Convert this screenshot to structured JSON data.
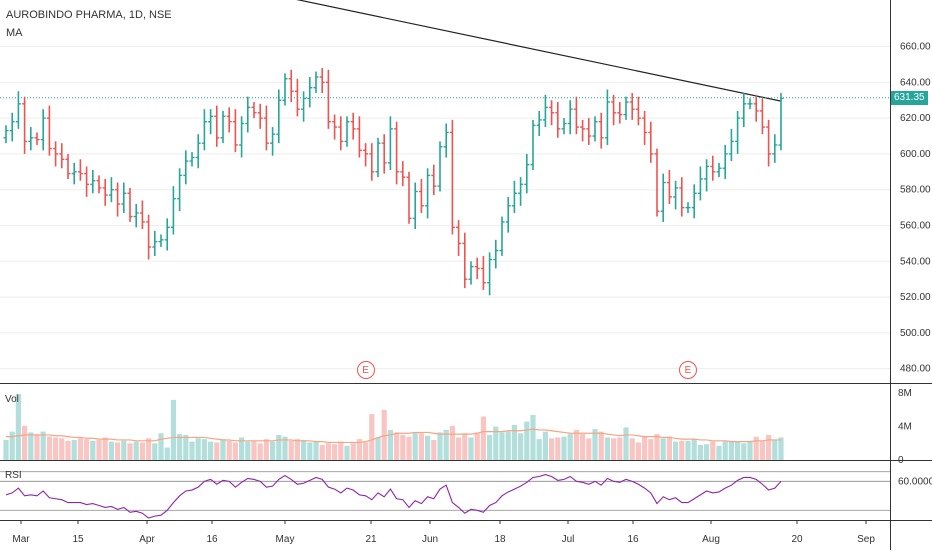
{
  "header": {
    "symbol_line": "AUROBINDO PHARMA, 1D, NSE",
    "indicator_label": "MA"
  },
  "colors": {
    "up": "#26a69a",
    "down": "#ef5350",
    "up_vol": "#b2dfdb",
    "down_vol": "#f8c5c3",
    "ma": "#222222",
    "rsi": "#8e24aa",
    "vol_ma": "#f4a582",
    "grid": "#eeeeee"
  },
  "earnings_badge": "E",
  "last_price_label": "631.35",
  "chart_data": [
    {
      "type": "ohlc",
      "pane": "price",
      "price_axis_ticks": [
        "660.00",
        "640.00",
        "620.00",
        "600.00",
        "580.00",
        "560.00",
        "540.00",
        "520.00",
        "500.00",
        "480.00"
      ],
      "ylim": [
        472,
        686
      ],
      "last_price": 631.35,
      "x_labels": [
        "Mar",
        "15",
        "Apr",
        "16",
        "May",
        "21",
        "Jun",
        "18",
        "Jul",
        "16",
        "Aug",
        "20",
        "Sep"
      ],
      "closes": [
        613,
        618,
        628,
        607,
        609,
        608,
        620,
        603,
        600,
        597,
        589,
        590,
        589,
        583,
        585,
        581,
        577,
        580,
        572,
        578,
        565,
        567,
        562,
        548,
        551,
        552,
        559,
        575,
        588,
        596,
        598,
        606,
        618,
        621,
        609,
        621,
        618,
        605,
        617,
        626,
        623,
        620,
        606,
        611,
        630,
        642,
        635,
        625,
        631,
        637,
        643,
        640,
        618,
        615,
        607,
        618,
        614,
        602,
        600,
        590,
        606,
        595,
        614,
        590,
        587,
        564,
        579,
        571,
        588,
        582,
        604,
        612,
        559,
        550,
        530,
        537,
        536,
        528,
        541,
        546,
        562,
        571,
        578,
        583,
        594,
        616,
        619,
        626,
        623,
        614,
        617,
        625,
        615,
        614,
        610,
        618,
        609,
        629,
        623,
        622,
        629,
        625,
        620,
        612,
        600,
        568,
        584,
        576,
        581,
        570,
        570,
        578,
        586,
        593,
        590,
        592,
        600,
        607,
        620,
        628,
        628,
        624,
        615,
        600,
        605,
        631
      ],
      "ma_line": {
        "start": 690.0,
        "end": 629.5
      },
      "earnings_indices": [
        58,
        110
      ]
    },
    {
      "type": "bar",
      "pane": "volume",
      "label": "Vol",
      "axis_ticks": [
        "8M",
        "4M",
        "0"
      ],
      "ylim": [
        0,
        8.5
      ],
      "values": [
        2.4,
        3.4,
        7.9,
        4.1,
        3.3,
        3.1,
        3.4,
        2.8,
        2.7,
        2.6,
        2.3,
        2.4,
        2.6,
        2.5,
        2.3,
        2.4,
        2.7,
        2.2,
        2.1,
        2.3,
        2.0,
        2.2,
        2.1,
        2.6,
        2.0,
        3.2,
        1.5,
        7.2,
        3.1,
        3.0,
        2.2,
        2.6,
        2.5,
        2.2,
        2.1,
        2.5,
        2.3,
        2.1,
        2.7,
        2.2,
        2.3,
        2.0,
        2.5,
        2.2,
        3.0,
        2.8,
        2.3,
        2.5,
        2.4,
        2.1,
        2.2,
        1.8,
        2.0,
        1.9,
        2.2,
        1.7,
        2.0,
        2.5,
        2.1,
        5.5,
        2.7,
        6.0,
        3.6,
        3.3,
        3.0,
        2.8,
        3.3,
        3.2,
        2.9,
        2.4,
        3.3,
        3.6,
        4.1,
        2.7,
        3.2,
        2.7,
        3.3,
        5.2,
        3.0,
        4.0,
        3.3,
        3.4,
        4.2,
        3.2,
        4.6,
        5.4,
        2.5,
        3.4,
        2.6,
        2.7,
        2.8,
        3.1,
        3.6,
        3.1,
        2.6,
        3.7,
        3.4,
        2.7,
        2.6,
        2.7,
        3.9,
        2.6,
        2.1,
        2.8,
        2.5,
        3.1,
        2.6,
        2.8,
        2.2,
        2.3,
        2.3,
        2.5,
        1.8,
        1.9,
        2.2,
        1.7,
        2.2,
        2.3,
        2.2,
        2.0,
        2.3,
        2.8,
        2.3,
        3.0,
        2.4,
        2.7
      ],
      "ma_values": [
        2.8,
        2.8,
        2.9,
        3.0,
        3.0,
        3.0,
        3.0,
        3.0,
        2.9,
        2.9,
        2.8,
        2.7,
        2.7,
        2.6,
        2.6,
        2.5,
        2.5,
        2.5,
        2.4,
        2.4,
        2.4,
        2.3,
        2.3,
        2.3,
        2.3,
        2.5,
        2.6,
        2.7,
        2.7,
        2.7,
        2.7,
        2.7,
        2.7,
        2.6,
        2.5,
        2.4,
        2.4,
        2.3,
        2.3,
        2.3,
        2.3,
        2.3,
        2.3,
        2.3,
        2.4,
        2.4,
        2.4,
        2.3,
        2.3,
        2.3,
        2.2,
        2.2,
        2.1,
        2.1,
        2.1,
        2.1,
        2.1,
        2.1,
        2.2,
        2.4,
        2.7,
        2.9,
        3.0,
        3.2,
        3.2,
        3.2,
        3.3,
        3.3,
        3.3,
        3.2,
        3.1,
        3.1,
        3.1,
        3.1,
        3.1,
        3.1,
        3.2,
        3.4,
        3.4,
        3.4,
        3.4,
        3.5,
        3.5,
        3.5,
        3.6,
        3.7,
        3.6,
        3.6,
        3.5,
        3.4,
        3.3,
        3.2,
        3.2,
        3.2,
        3.2,
        3.2,
        3.2,
        3.1,
        3.0,
        2.9,
        3.0,
        3.0,
        2.9,
        2.8,
        2.8,
        2.8,
        2.7,
        2.7,
        2.6,
        2.5,
        2.5,
        2.5,
        2.4,
        2.4,
        2.3,
        2.3,
        2.3,
        2.2,
        2.2,
        2.2,
        2.2,
        2.3,
        2.3,
        2.4,
        2.4,
        2.4
      ]
    },
    {
      "type": "line",
      "pane": "rsi",
      "label": "RSI",
      "axis_ticks": [
        "60.0000"
      ],
      "ylim": [
        20,
        80
      ],
      "reference_level": 60,
      "values": [
        46,
        48,
        53,
        45,
        46,
        45,
        50,
        43,
        42,
        41,
        38,
        38,
        38,
        36,
        37,
        35,
        33,
        34,
        31,
        33,
        28,
        29,
        27,
        22,
        24,
        25,
        30,
        38,
        45,
        50,
        51,
        54,
        60,
        62,
        57,
        61,
        60,
        54,
        59,
        63,
        62,
        60,
        54,
        55,
        62,
        66,
        62,
        57,
        58,
        61,
        64,
        62,
        54,
        52,
        48,
        53,
        51,
        46,
        45,
        41,
        48,
        44,
        52,
        42,
        41,
        33,
        40,
        37,
        44,
        42,
        52,
        56,
        38,
        33,
        27,
        31,
        30,
        28,
        35,
        38,
        45,
        49,
        52,
        55,
        59,
        64,
        65,
        67,
        65,
        61,
        62,
        65,
        60,
        59,
        57,
        60,
        56,
        63,
        60,
        59,
        62,
        60,
        57,
        53,
        48,
        37,
        44,
        41,
        43,
        38,
        38,
        42,
        46,
        50,
        48,
        49,
        53,
        56,
        61,
        64,
        64,
        62,
        57,
        51,
        53,
        60
      ]
    }
  ]
}
